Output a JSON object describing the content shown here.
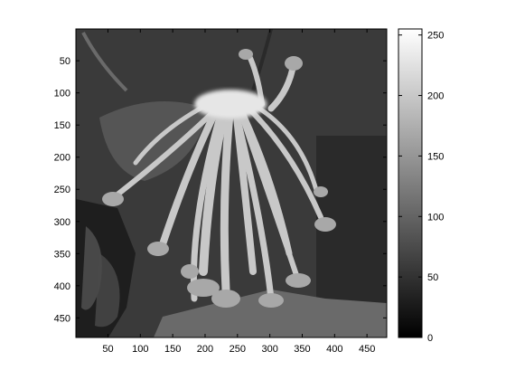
{
  "chart_data": {
    "type": "heatmap",
    "title": "",
    "xlabel": "",
    "ylabel": "",
    "colormap": "gray",
    "xlim": [
      0.5,
      480.5
    ],
    "ylim": [
      0.5,
      480.5
    ],
    "y_direction": "reversed",
    "grid": false,
    "x_ticks": [
      50,
      100,
      150,
      200,
      250,
      300,
      350,
      400,
      450
    ],
    "y_ticks": [
      50,
      100,
      150,
      200,
      250,
      300,
      350,
      400,
      450
    ],
    "image_content": "grayscale photo of drooping trumpet-shaped flowers",
    "colorbar": {
      "range": [
        0,
        255
      ],
      "ticks": [
        0,
        50,
        100,
        150,
        200,
        250
      ],
      "placement": "right"
    }
  }
}
